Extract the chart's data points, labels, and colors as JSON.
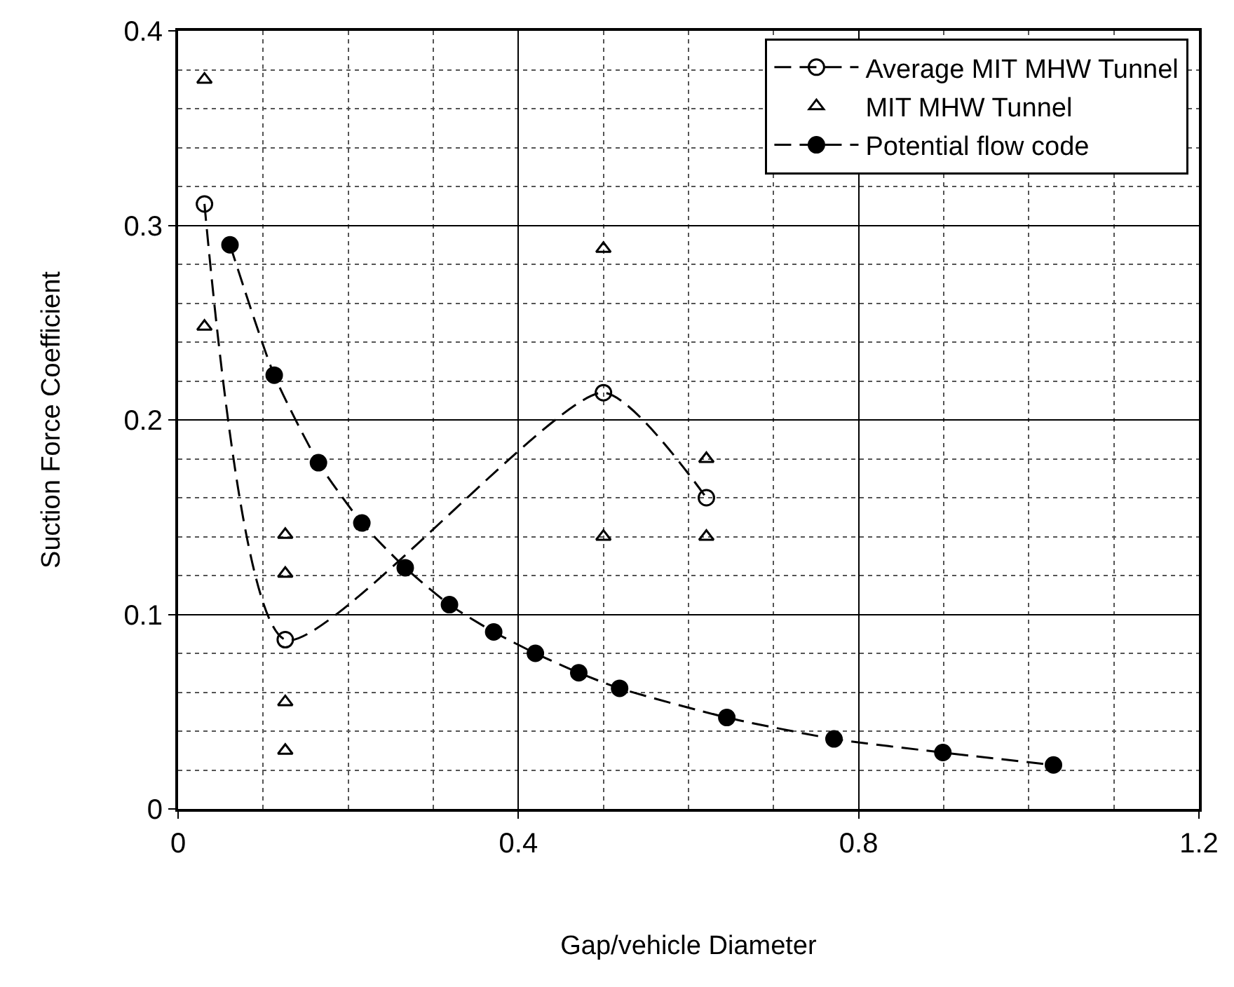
{
  "chart_data": {
    "type": "line",
    "xlabel": "Gap/vehicle Diameter",
    "ylabel": "Suction Force Coefficient",
    "xlim": [
      0,
      1.2
    ],
    "xticks": [
      0,
      0.4,
      0.8,
      1.2
    ],
    "ylim": [
      0,
      0.4
    ],
    "yticks": [
      0,
      0.1,
      0.2,
      0.3,
      0.4
    ],
    "grid": true,
    "legend": "top right",
    "series": [
      {
        "name": "Average MIT MHW Tunnel",
        "marker": "circle",
        "line_style": "dashed",
        "color": "#000000",
        "x": [
          0.031,
          0.126,
          0.5,
          0.621
        ],
        "values": [
          0.311,
          0.087,
          0.214,
          0.16
        ]
      },
      {
        "name": "MIT MHW Tunnel",
        "type": "scatter",
        "marker": "triangle",
        "color": "#000000",
        "x": [
          0.031,
          0.031,
          0.126,
          0.126,
          0.126,
          0.126,
          0.5,
          0.5,
          0.621,
          0.621
        ],
        "values": [
          0.375,
          0.248,
          0.141,
          0.121,
          0.055,
          0.03,
          0.288,
          0.14,
          0.18,
          0.14
        ]
      },
      {
        "name": "Potential flow code",
        "marker": "circle",
        "line_style": "dashed",
        "color": "#000000",
        "x": [
          0.061,
          0.113,
          0.165,
          0.216,
          0.267,
          0.319,
          0.371,
          0.42,
          0.471,
          0.519,
          0.645,
          0.771,
          0.899,
          1.029
        ],
        "values": [
          0.29,
          0.223,
          0.178,
          0.147,
          0.124,
          0.105,
          0.091,
          0.08,
          0.07,
          0.062,
          0.047,
          0.036,
          0.029,
          0.0226
        ]
      }
    ]
  }
}
